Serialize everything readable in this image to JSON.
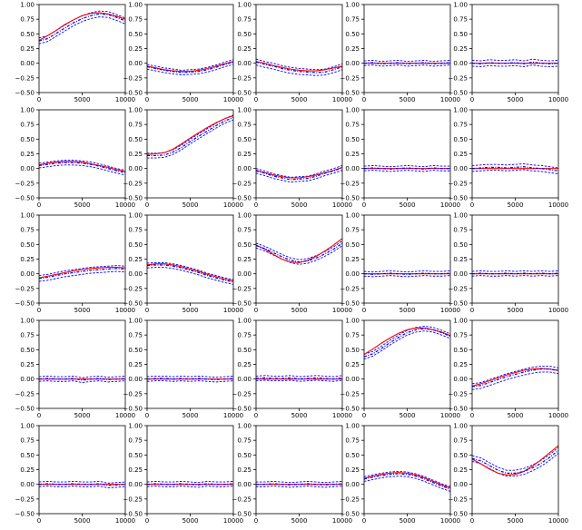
{
  "chart_data": {
    "type": "line",
    "layout": {
      "rows": 5,
      "cols": 5
    },
    "xlim": [
      0,
      10000
    ],
    "ylim": [
      -0.5,
      1.0
    ],
    "xticks": [
      0,
      5000,
      10000
    ],
    "yticks": [
      -0.5,
      -0.25,
      0.0,
      0.25,
      0.5,
      0.75,
      1.0
    ],
    "xtick_labels": [
      "0",
      "5000",
      "10000"
    ],
    "ytick_labels": [
      "−0.50",
      "−0.25",
      "0.00",
      "0.25",
      "0.50",
      "0.75",
      "1.00"
    ],
    "x": [
      0,
      1000,
      2000,
      3000,
      4000,
      5000,
      6000,
      7000,
      8000,
      9000,
      10000
    ],
    "series_styles": {
      "true": {
        "color": "#ff0000",
        "style": "solid"
      },
      "estimate": {
        "color": "#0000ff",
        "style": "dash-dot"
      },
      "bounds": {
        "color": "#0000ff",
        "style": "dashed"
      }
    },
    "panels": [
      {
        "row": 0,
        "col": 0,
        "true": [
          0.39,
          0.47,
          0.56,
          0.66,
          0.74,
          0.81,
          0.85,
          0.86,
          0.84,
          0.8,
          0.75
        ],
        "estimate": [
          0.38,
          0.42,
          0.51,
          0.6,
          0.69,
          0.76,
          0.81,
          0.84,
          0.83,
          0.78,
          0.72
        ],
        "band": 0.05
      },
      {
        "row": 0,
        "col": 1,
        "true": [
          -0.05,
          -0.08,
          -0.11,
          -0.13,
          -0.14,
          -0.14,
          -0.12,
          -0.09,
          -0.05,
          -0.01,
          0.03
        ],
        "estimate": [
          -0.06,
          -0.09,
          -0.12,
          -0.14,
          -0.16,
          -0.15,
          -0.14,
          -0.11,
          -0.07,
          -0.02,
          0.02
        ],
        "band": 0.04
      },
      {
        "row": 0,
        "col": 2,
        "true": [
          0.03,
          0.0,
          -0.04,
          -0.07,
          -0.1,
          -0.12,
          -0.13,
          -0.13,
          -0.11,
          -0.08,
          -0.05
        ],
        "estimate": [
          0.02,
          -0.02,
          -0.05,
          -0.09,
          -0.12,
          -0.14,
          -0.15,
          -0.16,
          -0.15,
          -0.11,
          -0.06
        ],
        "band": 0.05
      },
      {
        "row": 0,
        "col": 3,
        "true": [
          0,
          0,
          0,
          0,
          0,
          0,
          0,
          0,
          0,
          0,
          0
        ],
        "estimate": [
          0.0,
          0.01,
          -0.01,
          0.0,
          0.01,
          -0.01,
          0.0,
          0.01,
          -0.01,
          0.0,
          0.01
        ],
        "band": 0.04
      },
      {
        "row": 0,
        "col": 4,
        "true": [
          0,
          0,
          0,
          0,
          0,
          0,
          0,
          0,
          0,
          0,
          0
        ],
        "estimate": [
          0.0,
          -0.01,
          0.01,
          0.0,
          0.0,
          0.01,
          -0.01,
          0.02,
          0.0,
          -0.01,
          0.0
        ],
        "band": 0.05
      },
      {
        "row": 1,
        "col": 0,
        "true": [
          0.06,
          0.09,
          0.11,
          0.12,
          0.12,
          0.11,
          0.08,
          0.05,
          0.02,
          -0.02,
          -0.05
        ],
        "estimate": [
          0.05,
          0.07,
          0.09,
          0.1,
          0.1,
          0.09,
          0.07,
          0.04,
          0.0,
          -0.04,
          -0.07
        ],
        "band": 0.04
      },
      {
        "row": 1,
        "col": 1,
        "true": [
          0.24,
          0.25,
          0.27,
          0.33,
          0.42,
          0.52,
          0.61,
          0.7,
          0.78,
          0.85,
          0.9
        ],
        "estimate": [
          0.22,
          0.22,
          0.23,
          0.28,
          0.36,
          0.46,
          0.55,
          0.64,
          0.73,
          0.81,
          0.87
        ],
        "band": 0.04
      },
      {
        "row": 1,
        "col": 2,
        "true": [
          -0.03,
          -0.07,
          -0.11,
          -0.14,
          -0.16,
          -0.16,
          -0.14,
          -0.11,
          -0.07,
          -0.03,
          0.02
        ],
        "estimate": [
          -0.04,
          -0.08,
          -0.13,
          -0.16,
          -0.19,
          -0.18,
          -0.17,
          -0.13,
          -0.08,
          -0.04,
          0.01
        ],
        "band": 0.04
      },
      {
        "row": 1,
        "col": 3,
        "true": [
          0,
          0,
          0,
          0,
          0,
          0,
          0,
          0,
          0,
          0,
          0
        ],
        "estimate": [
          0.0,
          0.01,
          0.0,
          -0.01,
          0.0,
          0.01,
          0.0,
          -0.01,
          0.01,
          0.0,
          0.0
        ],
        "band": 0.04
      },
      {
        "row": 1,
        "col": 4,
        "true": [
          0,
          0,
          0,
          0,
          0,
          0,
          0,
          0,
          0,
          0,
          0
        ],
        "estimate": [
          0.0,
          0.01,
          0.02,
          0.02,
          0.01,
          0.02,
          0.03,
          0.01,
          0.0,
          -0.02,
          -0.04
        ],
        "band": 0.05
      },
      {
        "row": 2,
        "col": 0,
        "true": [
          -0.07,
          -0.04,
          -0.01,
          0.02,
          0.05,
          0.07,
          0.09,
          0.1,
          0.11,
          0.11,
          0.1
        ],
        "estimate": [
          -0.08,
          -0.06,
          -0.03,
          0.0,
          0.02,
          0.04,
          0.06,
          0.07,
          0.08,
          0.09,
          0.08
        ],
        "band": 0.05
      },
      {
        "row": 2,
        "col": 1,
        "true": [
          0.15,
          0.17,
          0.17,
          0.15,
          0.12,
          0.08,
          0.04,
          -0.01,
          -0.05,
          -0.09,
          -0.12
        ],
        "estimate": [
          0.14,
          0.15,
          0.15,
          0.13,
          0.1,
          0.06,
          0.02,
          -0.03,
          -0.07,
          -0.11,
          -0.14
        ],
        "band": 0.04
      },
      {
        "row": 2,
        "col": 2,
        "true": [
          0.49,
          0.42,
          0.33,
          0.25,
          0.2,
          0.19,
          0.23,
          0.3,
          0.39,
          0.49,
          0.6
        ],
        "estimate": [
          0.48,
          0.43,
          0.36,
          0.29,
          0.23,
          0.2,
          0.22,
          0.27,
          0.34,
          0.42,
          0.52
        ],
        "band": 0.04
      },
      {
        "row": 2,
        "col": 3,
        "true": [
          0,
          0,
          0,
          0,
          0,
          0,
          0,
          0,
          0,
          0,
          0
        ],
        "estimate": [
          0.0,
          -0.01,
          0.0,
          0.01,
          0.0,
          -0.01,
          0.0,
          0.01,
          0.0,
          0.0,
          0.01
        ],
        "band": 0.04
      },
      {
        "row": 2,
        "col": 4,
        "true": [
          0,
          0,
          0,
          0,
          0,
          0,
          0,
          0,
          0,
          0,
          0
        ],
        "estimate": [
          0.0,
          0.01,
          0.0,
          0.0,
          0.01,
          0.0,
          0.01,
          0.0,
          0.01,
          0.0,
          0.01
        ],
        "band": 0.04
      },
      {
        "row": 3,
        "col": 0,
        "true": [
          0,
          0,
          0,
          0,
          0,
          0,
          0,
          0,
          0,
          0,
          0
        ],
        "estimate": [
          0.0,
          0.01,
          0.0,
          0.0,
          0.01,
          -0.02,
          0.0,
          0.01,
          -0.01,
          0.0,
          0.01
        ],
        "band": 0.04
      },
      {
        "row": 3,
        "col": 1,
        "true": [
          0,
          0,
          0,
          0,
          0,
          0,
          0,
          0,
          0,
          0,
          0
        ],
        "estimate": [
          0.0,
          0.01,
          0.01,
          0.0,
          0.01,
          0.0,
          0.01,
          0.0,
          -0.01,
          0.0,
          0.01
        ],
        "band": 0.04
      },
      {
        "row": 3,
        "col": 2,
        "true": [
          0,
          0,
          0,
          0,
          0,
          0,
          0,
          0,
          0,
          0,
          0
        ],
        "estimate": [
          0.01,
          0.02,
          0.01,
          0.01,
          0.02,
          0.0,
          0.01,
          0.02,
          0.01,
          0.0,
          0.02
        ],
        "band": 0.04
      },
      {
        "row": 3,
        "col": 3,
        "true": [
          0.42,
          0.51,
          0.61,
          0.7,
          0.78,
          0.84,
          0.87,
          0.87,
          0.84,
          0.8,
          0.74
        ],
        "estimate": [
          0.38,
          0.43,
          0.52,
          0.62,
          0.71,
          0.79,
          0.84,
          0.86,
          0.84,
          0.79,
          0.73
        ],
        "band": 0.04
      },
      {
        "row": 3,
        "col": 4,
        "true": [
          -0.12,
          -0.08,
          -0.03,
          0.02,
          0.07,
          0.11,
          0.15,
          0.17,
          0.18,
          0.17,
          0.15
        ],
        "estimate": [
          -0.13,
          -0.11,
          -0.06,
          -0.01,
          0.04,
          0.08,
          0.12,
          0.15,
          0.17,
          0.17,
          0.14
        ],
        "band": 0.05
      },
      {
        "row": 4,
        "col": 0,
        "true": [
          0,
          0,
          0,
          0,
          0,
          0,
          0,
          0,
          0,
          0,
          0
        ],
        "estimate": [
          0.0,
          0.01,
          0.0,
          0.0,
          0.01,
          0.0,
          0.0,
          0.01,
          -0.02,
          -0.01,
          0.0
        ],
        "band": 0.04
      },
      {
        "row": 4,
        "col": 1,
        "true": [
          0,
          0,
          0,
          0,
          0,
          0,
          0,
          0,
          0,
          0,
          0
        ],
        "estimate": [
          0.0,
          0.01,
          0.0,
          0.0,
          0.01,
          0.0,
          -0.01,
          0.01,
          0.0,
          0.0,
          0.01
        ],
        "band": 0.04
      },
      {
        "row": 4,
        "col": 2,
        "true": [
          0,
          0,
          0,
          0,
          0,
          0,
          0,
          0,
          0,
          0,
          0
        ],
        "estimate": [
          0.0,
          0.0,
          0.01,
          0.0,
          -0.01,
          0.0,
          0.01,
          0.0,
          -0.01,
          0.0,
          0.01
        ],
        "band": 0.04
      },
      {
        "row": 4,
        "col": 3,
        "true": [
          0.1,
          0.14,
          0.17,
          0.19,
          0.2,
          0.19,
          0.16,
          0.11,
          0.05,
          -0.01,
          -0.06
        ],
        "estimate": [
          0.09,
          0.12,
          0.15,
          0.17,
          0.18,
          0.17,
          0.14,
          0.09,
          0.03,
          -0.03,
          -0.08
        ],
        "band": 0.04
      },
      {
        "row": 4,
        "col": 4,
        "true": [
          0.43,
          0.35,
          0.26,
          0.19,
          0.16,
          0.17,
          0.22,
          0.31,
          0.42,
          0.54,
          0.66
        ],
        "estimate": [
          0.44,
          0.4,
          0.32,
          0.24,
          0.19,
          0.19,
          0.22,
          0.28,
          0.36,
          0.46,
          0.58
        ],
        "band": 0.05
      }
    ]
  }
}
